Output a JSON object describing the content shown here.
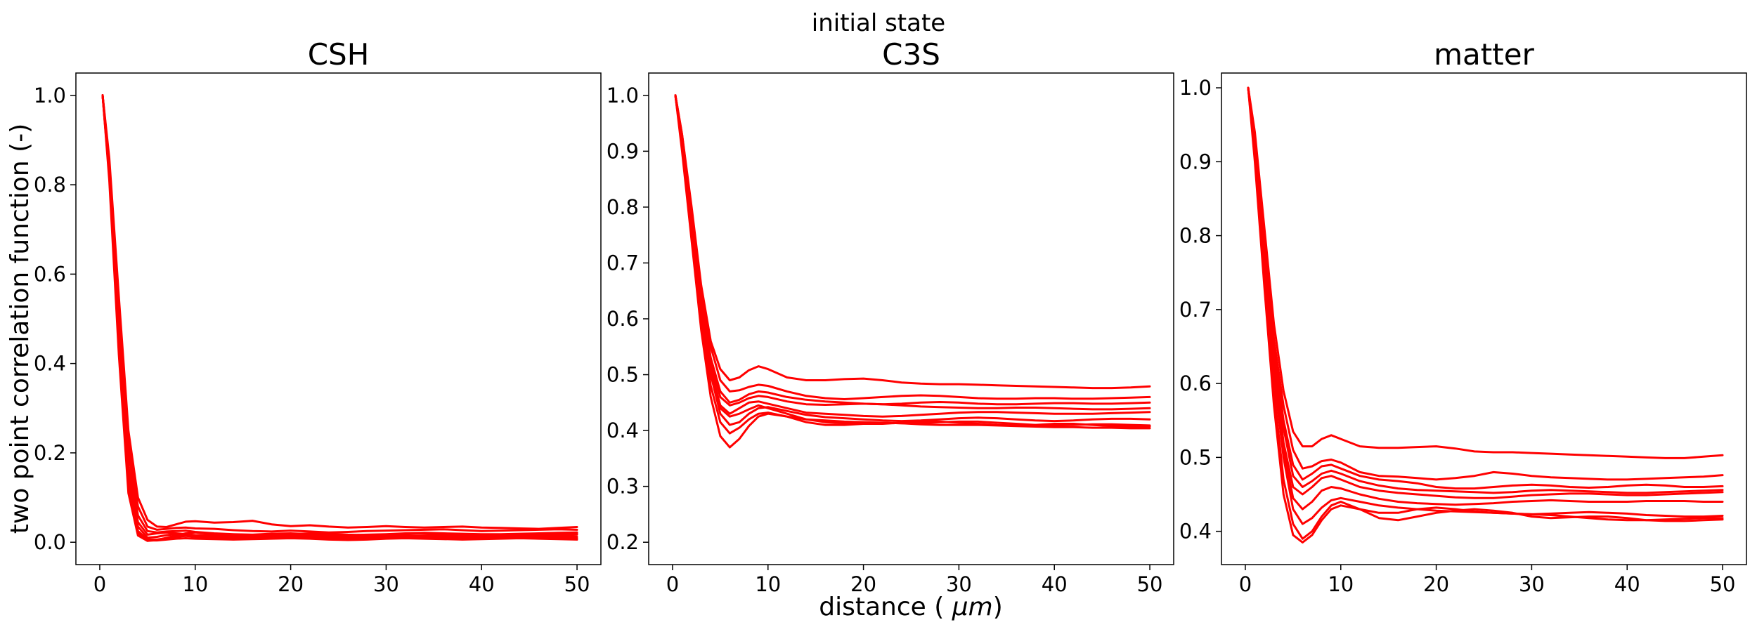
{
  "figure": {
    "suptitle": "initial state",
    "xlabel": "distance ($\\mu m$)",
    "ylabel": "two point correlation function (-)",
    "line_color": "#ff0000"
  },
  "chart_data": [
    {
      "type": "line",
      "title": "CSH",
      "xlim": [
        -2.5,
        52.5
      ],
      "ylim": [
        -0.05,
        1.05
      ],
      "xticks": [
        0,
        10,
        20,
        30,
        40,
        50
      ],
      "yticks": [
        0.0,
        0.2,
        0.4,
        0.6,
        0.8,
        1.0
      ],
      "ytick_labels": [
        "0.0",
        "0.2",
        "0.4",
        "0.6",
        "0.8",
        "1.0"
      ],
      "x": [
        0.3,
        1,
        2,
        3,
        4,
        5,
        6,
        7,
        8,
        9,
        10,
        12,
        14,
        16,
        18,
        20,
        22,
        24,
        26,
        28,
        30,
        32,
        34,
        36,
        38,
        40,
        42,
        44,
        46,
        48,
        50
      ],
      "series": [
        {
          "values": [
            1.0,
            0.86,
            0.55,
            0.25,
            0.1,
            0.05,
            0.035,
            0.034,
            0.04,
            0.046,
            0.047,
            0.044,
            0.045,
            0.048,
            0.04,
            0.036,
            0.038,
            0.035,
            0.033,
            0.034,
            0.036,
            0.034,
            0.033,
            0.034,
            0.035,
            0.033,
            0.032,
            0.031,
            0.03,
            0.032,
            0.034
          ]
        },
        {
          "values": [
            1.0,
            0.85,
            0.52,
            0.22,
            0.08,
            0.035,
            0.028,
            0.03,
            0.032,
            0.033,
            0.031,
            0.03,
            0.027,
            0.025,
            0.024,
            0.026,
            0.024,
            0.022,
            0.023,
            0.025,
            0.026,
            0.027,
            0.028,
            0.029,
            0.027,
            0.025,
            0.026,
            0.027,
            0.028,
            0.029,
            0.028
          ]
        },
        {
          "values": [
            1.0,
            0.84,
            0.5,
            0.2,
            0.06,
            0.025,
            0.022,
            0.024,
            0.025,
            0.026,
            0.023,
            0.02,
            0.018,
            0.017,
            0.019,
            0.02,
            0.018,
            0.017,
            0.016,
            0.017,
            0.018,
            0.02,
            0.021,
            0.02,
            0.019,
            0.018,
            0.018,
            0.019,
            0.02,
            0.021,
            0.022
          ]
        },
        {
          "values": [
            1.0,
            0.83,
            0.48,
            0.17,
            0.045,
            0.017,
            0.02,
            0.022,
            0.02,
            0.018,
            0.016,
            0.015,
            0.014,
            0.016,
            0.018,
            0.017,
            0.015,
            0.014,
            0.015,
            0.016,
            0.015,
            0.014,
            0.015,
            0.016,
            0.017,
            0.016,
            0.015,
            0.014,
            0.015,
            0.016,
            0.017
          ]
        },
        {
          "values": [
            1.0,
            0.83,
            0.47,
            0.15,
            0.035,
            0.01,
            0.012,
            0.016,
            0.018,
            0.017,
            0.015,
            0.012,
            0.011,
            0.013,
            0.015,
            0.016,
            0.014,
            0.012,
            0.011,
            0.012,
            0.014,
            0.015,
            0.014,
            0.013,
            0.012,
            0.012,
            0.013,
            0.014,
            0.014,
            0.013,
            0.012
          ]
        },
        {
          "values": [
            1.0,
            0.82,
            0.45,
            0.13,
            0.025,
            0.006,
            0.006,
            0.009,
            0.012,
            0.014,
            0.012,
            0.01,
            0.009,
            0.01,
            0.012,
            0.013,
            0.011,
            0.009,
            0.008,
            0.009,
            0.011,
            0.012,
            0.011,
            0.01,
            0.009,
            0.01,
            0.011,
            0.012,
            0.011,
            0.01,
            0.009
          ]
        },
        {
          "values": [
            1.0,
            0.82,
            0.44,
            0.12,
            0.02,
            0.004,
            0.004,
            0.006,
            0.008,
            0.009,
            0.008,
            0.007,
            0.006,
            0.007,
            0.008,
            0.009,
            0.008,
            0.006,
            0.005,
            0.006,
            0.008,
            0.009,
            0.008,
            0.007,
            0.006,
            0.007,
            0.008,
            0.009,
            0.008,
            0.007,
            0.006
          ]
        },
        {
          "values": [
            1.0,
            0.81,
            0.42,
            0.11,
            0.015,
            0.003,
            0.005,
            0.01,
            0.015,
            0.02,
            0.022,
            0.018,
            0.015,
            0.014,
            0.016,
            0.018,
            0.02,
            0.019,
            0.017,
            0.016,
            0.017,
            0.019,
            0.02,
            0.018,
            0.016,
            0.015,
            0.016,
            0.017,
            0.018,
            0.019,
            0.02
          ]
        }
      ]
    },
    {
      "type": "line",
      "title": "C3S",
      "xlim": [
        -2.5,
        52.5
      ],
      "ylim": [
        0.16,
        1.04
      ],
      "xticks": [
        0,
        10,
        20,
        30,
        40,
        50
      ],
      "yticks": [
        0.2,
        0.3,
        0.4,
        0.5,
        0.6,
        0.7,
        0.8,
        0.9,
        1.0
      ],
      "ytick_labels": [
        "0.2",
        "0.3",
        "0.4",
        "0.5",
        "0.6",
        "0.7",
        "0.8",
        "0.9",
        "1.0"
      ],
      "x": [
        0.3,
        1,
        2,
        3,
        4,
        5,
        6,
        7,
        8,
        9,
        10,
        12,
        14,
        16,
        18,
        20,
        22,
        24,
        26,
        28,
        30,
        32,
        34,
        36,
        38,
        40,
        42,
        44,
        46,
        48,
        50
      ],
      "series": [
        {
          "values": [
            1.0,
            0.93,
            0.8,
            0.66,
            0.56,
            0.51,
            0.49,
            0.495,
            0.508,
            0.515,
            0.51,
            0.495,
            0.49,
            0.49,
            0.492,
            0.493,
            0.49,
            0.486,
            0.484,
            0.483,
            0.483,
            0.482,
            0.481,
            0.48,
            0.479,
            0.478,
            0.477,
            0.476,
            0.476,
            0.477,
            0.479
          ]
        },
        {
          "values": [
            1.0,
            0.93,
            0.79,
            0.65,
            0.55,
            0.49,
            0.47,
            0.472,
            0.478,
            0.482,
            0.48,
            0.47,
            0.462,
            0.458,
            0.456,
            0.458,
            0.46,
            0.462,
            0.463,
            0.462,
            0.46,
            0.458,
            0.457,
            0.457,
            0.458,
            0.458,
            0.457,
            0.457,
            0.458,
            0.459,
            0.46
          ]
        },
        {
          "values": [
            1.0,
            0.92,
            0.78,
            0.64,
            0.53,
            0.47,
            0.45,
            0.455,
            0.465,
            0.47,
            0.468,
            0.46,
            0.455,
            0.452,
            0.45,
            0.448,
            0.447,
            0.448,
            0.45,
            0.451,
            0.45,
            0.448,
            0.447,
            0.447,
            0.448,
            0.449,
            0.449,
            0.448,
            0.448,
            0.449,
            0.45
          ]
        },
        {
          "values": [
            1.0,
            0.92,
            0.78,
            0.63,
            0.52,
            0.46,
            0.445,
            0.45,
            0.458,
            0.462,
            0.46,
            0.452,
            0.447,
            0.446,
            0.447,
            0.448,
            0.447,
            0.445,
            0.443,
            0.442,
            0.441,
            0.44,
            0.44,
            0.441,
            0.441,
            0.44,
            0.439,
            0.438,
            0.438,
            0.439,
            0.44
          ]
        },
        {
          "values": [
            1.0,
            0.92,
            0.77,
            0.62,
            0.51,
            0.445,
            0.43,
            0.44,
            0.45,
            0.452,
            0.448,
            0.44,
            0.432,
            0.43,
            0.428,
            0.426,
            0.425,
            0.426,
            0.428,
            0.43,
            0.432,
            0.433,
            0.433,
            0.432,
            0.431,
            0.43,
            0.43,
            0.43,
            0.431,
            0.432,
            0.433
          ]
        },
        {
          "values": [
            1.0,
            0.91,
            0.76,
            0.61,
            0.5,
            0.43,
            0.41,
            0.415,
            0.43,
            0.44,
            0.442,
            0.435,
            0.428,
            0.424,
            0.422,
            0.42,
            0.418,
            0.417,
            0.418,
            0.42,
            0.422,
            0.423,
            0.422,
            0.42,
            0.418,
            0.417,
            0.418,
            0.42,
            0.421,
            0.421,
            0.42
          ]
        },
        {
          "values": [
            1.0,
            0.91,
            0.75,
            0.6,
            0.48,
            0.415,
            0.395,
            0.405,
            0.42,
            0.43,
            0.432,
            0.425,
            0.42,
            0.418,
            0.416,
            0.415,
            0.414,
            0.413,
            0.413,
            0.415,
            0.416,
            0.416,
            0.414,
            0.412,
            0.41,
            0.409,
            0.41,
            0.411,
            0.411,
            0.41,
            0.409
          ]
        },
        {
          "values": [
            1.0,
            0.9,
            0.74,
            0.58,
            0.46,
            0.39,
            0.37,
            0.385,
            0.408,
            0.425,
            0.43,
            0.425,
            0.415,
            0.41,
            0.41,
            0.412,
            0.414,
            0.413,
            0.411,
            0.41,
            0.41,
            0.41,
            0.409,
            0.408,
            0.407,
            0.406,
            0.406,
            0.405,
            0.405,
            0.404,
            0.404
          ]
        },
        {
          "values": [
            1.0,
            0.91,
            0.76,
            0.61,
            0.5,
            0.44,
            0.425,
            0.43,
            0.438,
            0.445,
            0.44,
            0.43,
            0.42,
            0.415,
            0.413,
            0.412,
            0.412,
            0.414,
            0.416,
            0.416,
            0.414,
            0.412,
            0.41,
            0.409,
            0.41,
            0.412,
            0.412,
            0.41,
            0.408,
            0.407,
            0.407
          ]
        }
      ]
    },
    {
      "type": "line",
      "title": "matter",
      "xlim": [
        -2.5,
        52.5
      ],
      "ylim": [
        0.355,
        1.02
      ],
      "xticks": [
        0,
        10,
        20,
        30,
        40,
        50
      ],
      "yticks": [
        0.4,
        0.5,
        0.6,
        0.7,
        0.8,
        0.9,
        1.0
      ],
      "ytick_labels": [
        "0.4",
        "0.5",
        "0.6",
        "0.7",
        "0.8",
        "0.9",
        "1.0"
      ],
      "x": [
        0.3,
        1,
        2,
        3,
        4,
        5,
        6,
        7,
        8,
        9,
        10,
        12,
        14,
        16,
        18,
        20,
        22,
        24,
        26,
        28,
        30,
        32,
        34,
        36,
        38,
        40,
        42,
        44,
        46,
        48,
        50
      ],
      "series": [
        {
          "values": [
            1.0,
            0.94,
            0.81,
            0.68,
            0.59,
            0.535,
            0.515,
            0.515,
            0.525,
            0.53,
            0.525,
            0.515,
            0.513,
            0.513,
            0.514,
            0.515,
            0.512,
            0.508,
            0.507,
            0.507,
            0.506,
            0.505,
            0.504,
            0.503,
            0.502,
            0.501,
            0.5,
            0.499,
            0.499,
            0.501,
            0.503
          ]
        },
        {
          "values": [
            1.0,
            0.93,
            0.8,
            0.66,
            0.57,
            0.51,
            0.485,
            0.488,
            0.495,
            0.497,
            0.493,
            0.48,
            0.475,
            0.474,
            0.472,
            0.47,
            0.472,
            0.475,
            0.48,
            0.478,
            0.475,
            0.473,
            0.472,
            0.471,
            0.47,
            0.47,
            0.471,
            0.472,
            0.473,
            0.474,
            0.476
          ]
        },
        {
          "values": [
            1.0,
            0.93,
            0.79,
            0.65,
            0.55,
            0.49,
            0.47,
            0.478,
            0.488,
            0.49,
            0.485,
            0.475,
            0.47,
            0.468,
            0.465,
            0.46,
            0.458,
            0.458,
            0.46,
            0.462,
            0.463,
            0.462,
            0.46,
            0.459,
            0.46,
            0.462,
            0.463,
            0.462,
            0.46,
            0.46,
            0.461
          ]
        },
        {
          "values": [
            1.0,
            0.93,
            0.79,
            0.64,
            0.54,
            0.475,
            0.46,
            0.468,
            0.478,
            0.482,
            0.478,
            0.468,
            0.462,
            0.458,
            0.456,
            0.455,
            0.454,
            0.453,
            0.452,
            0.453,
            0.455,
            0.456,
            0.455,
            0.454,
            0.453,
            0.452,
            0.452,
            0.453,
            0.454,
            0.455,
            0.456
          ]
        },
        {
          "values": [
            1.0,
            0.92,
            0.78,
            0.63,
            0.52,
            0.46,
            0.45,
            0.46,
            0.472,
            0.475,
            0.47,
            0.46,
            0.455,
            0.452,
            0.45,
            0.448,
            0.446,
            0.445,
            0.445,
            0.447,
            0.449,
            0.45,
            0.451,
            0.451,
            0.45,
            0.449,
            0.449,
            0.45,
            0.451,
            0.452,
            0.453
          ]
        },
        {
          "values": [
            1.0,
            0.92,
            0.77,
            0.62,
            0.51,
            0.445,
            0.43,
            0.44,
            0.455,
            0.46,
            0.458,
            0.45,
            0.444,
            0.44,
            0.438,
            0.437,
            0.436,
            0.437,
            0.438,
            0.44,
            0.441,
            0.442,
            0.441,
            0.44,
            0.44,
            0.44,
            0.441,
            0.441,
            0.441,
            0.44,
            0.44
          ]
        },
        {
          "values": [
            1.0,
            0.92,
            0.76,
            0.61,
            0.5,
            0.43,
            0.41,
            0.418,
            0.432,
            0.442,
            0.445,
            0.44,
            0.435,
            0.432,
            0.43,
            0.428,
            0.427,
            0.426,
            0.425,
            0.424,
            0.423,
            0.424,
            0.425,
            0.426,
            0.425,
            0.424,
            0.422,
            0.421,
            0.42,
            0.42,
            0.421
          ]
        },
        {
          "values": [
            1.0,
            0.91,
            0.75,
            0.59,
            0.47,
            0.41,
            0.39,
            0.4,
            0.42,
            0.435,
            0.44,
            0.43,
            0.418,
            0.415,
            0.42,
            0.425,
            0.428,
            0.43,
            0.428,
            0.425,
            0.42,
            0.418,
            0.419,
            0.42,
            0.42,
            0.418,
            0.415,
            0.414,
            0.414,
            0.415,
            0.416
          ]
        },
        {
          "values": [
            1.0,
            0.9,
            0.73,
            0.57,
            0.45,
            0.395,
            0.385,
            0.395,
            0.415,
            0.43,
            0.435,
            0.43,
            0.425,
            0.425,
            0.43,
            0.432,
            0.43,
            0.427,
            0.425,
            0.424,
            0.423,
            0.422,
            0.42,
            0.418,
            0.416,
            0.415,
            0.415,
            0.416,
            0.417,
            0.418,
            0.418
          ]
        }
      ]
    }
  ]
}
